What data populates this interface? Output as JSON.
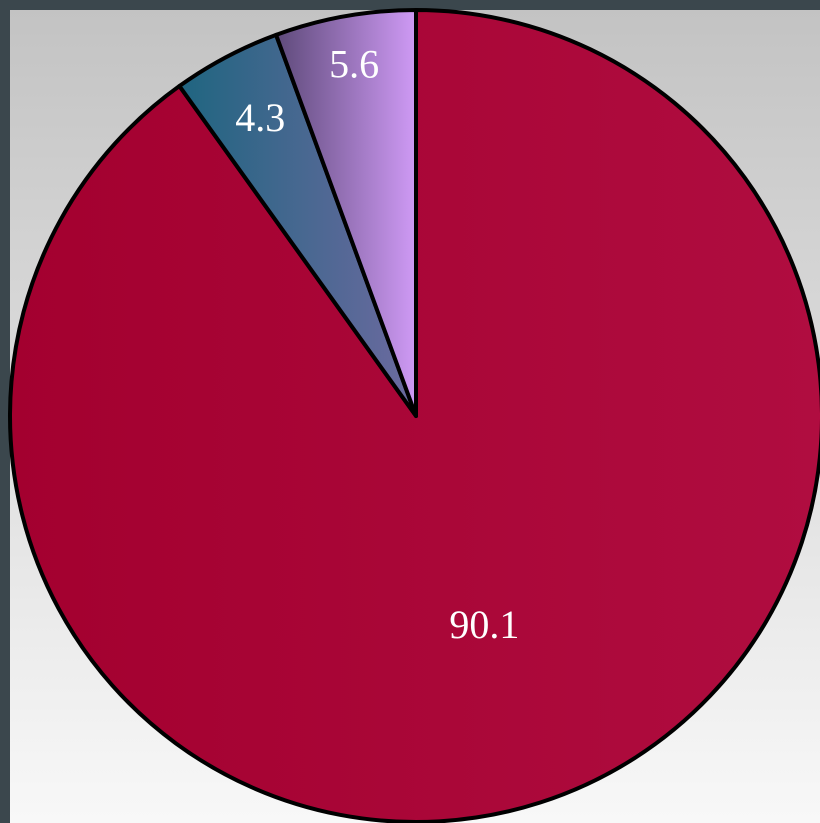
{
  "chart_data": {
    "type": "pie",
    "start_angle_deg": 0,
    "direction": "clockwise",
    "slices": [
      {
        "label": "90.1",
        "value": 90.1,
        "color_light": "#b00d40",
        "color_dark": "#a3002f"
      },
      {
        "label": "4.3",
        "value": 4.3,
        "color_light": "#6d6aa0",
        "color_dark": "#1f6580"
      },
      {
        "label": "5.6",
        "value": 5.6,
        "color_light": "#cf9af5",
        "color_dark": "#5e4a7a"
      }
    ],
    "title": "",
    "legend": "none",
    "plot_background": {
      "top": "#c3c3c3",
      "bottom": "#f8f8f8"
    },
    "frame_color": "#3b474d"
  }
}
